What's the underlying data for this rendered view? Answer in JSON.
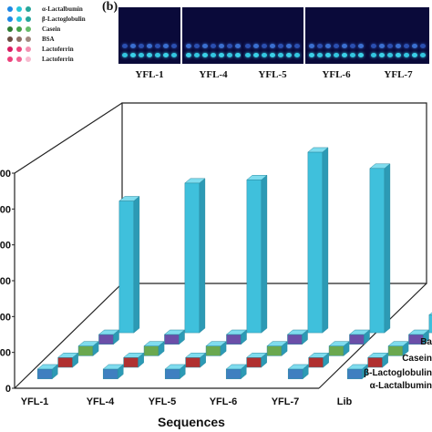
{
  "panel_b": {
    "label": "(b)",
    "images": [
      {
        "label": "YFL-1"
      },
      {
        "label": "YFL-4"
      },
      {
        "label": "YFL-5"
      },
      {
        "label": "YFL-6"
      },
      {
        "label": "YFL-7"
      }
    ]
  },
  "legend": {
    "items": [
      {
        "label": "α-Lactalbumin",
        "colors": [
          "#1e88e5",
          "#26c6da",
          "#26a69a"
        ]
      },
      {
        "label": "β-Lactoglobulin",
        "colors": [
          "#1e88e5",
          "#26c6da",
          "#26a69a"
        ]
      },
      {
        "label": "Casein",
        "colors": [
          "#2e7d32",
          "#43a047",
          "#66bb6a"
        ]
      },
      {
        "label": "BSA",
        "colors": [
          "#6d4c41",
          "#8d6e63",
          "#a1887f"
        ]
      },
      {
        "label": "Lactoferrin",
        "colors": [
          "#d81b60",
          "#ec407a",
          "#f48fb1"
        ]
      },
      {
        "label": "Lactoferrin",
        "colors": [
          "#ec407a",
          "#f06292",
          "#f8bbd0"
        ]
      }
    ]
  },
  "chart_data": {
    "type": "bar",
    "xlabel": "Sequences",
    "categories": [
      "YFL-1",
      "YFL-4",
      "YFL-5",
      "YFL-6",
      "YFL-7",
      "Lib"
    ],
    "y_tick_labels": [
      "0",
      "00",
      "00",
      "00",
      "00",
      "00",
      "00"
    ],
    "depth_labels": [
      "α-Lactalbumin",
      "β-Lactoglobulin",
      "Casein",
      "Ba"
    ],
    "series": [
      {
        "name": "α-Lactalbumin",
        "color": "#3f7fc0",
        "values": [
          0.3,
          0.3,
          0.3,
          0.3,
          0.3,
          0.3
        ]
      },
      {
        "name": "β-Lactoglobulin",
        "color": "#b03030",
        "values": [
          0.3,
          0.3,
          0.3,
          0.3,
          0.3,
          0.3
        ]
      },
      {
        "name": "Casein",
        "color": "#6aa84f",
        "values": [
          0.3,
          0.3,
          0.3,
          0.3,
          0.3,
          0.3
        ]
      },
      {
        "name": "Ba",
        "color": "#6b4fa8",
        "values": [
          0.3,
          0.3,
          0.3,
          0.3,
          0.3,
          0.3
        ]
      },
      {
        "name": "Lactoferrin",
        "color": "#3fc0dc",
        "values": [
          4.05,
          4.6,
          4.7,
          5.55,
          5.05,
          0.55
        ]
      }
    ],
    "ylim": [
      0,
      6
    ],
    "grid": false
  }
}
